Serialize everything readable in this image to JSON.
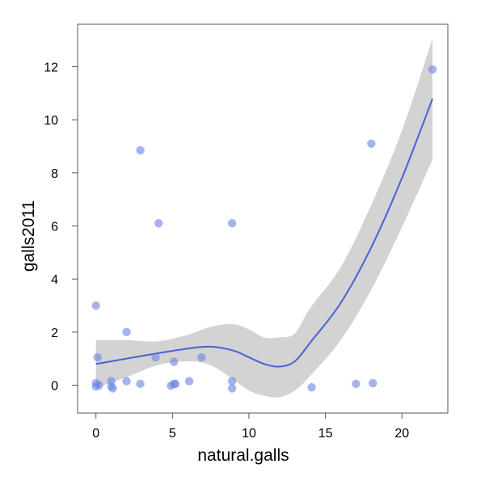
{
  "chart_data": {
    "type": "scatter",
    "title": "",
    "xlabel": "natural.galls",
    "ylabel": "galls2011",
    "xlim": [
      -1.2,
      23.0
    ],
    "ylim": [
      -1.05,
      13.6
    ],
    "xticks": [
      0,
      5,
      10,
      15,
      20
    ],
    "yticks": [
      0,
      2,
      4,
      6,
      8,
      10,
      12
    ],
    "grid": false,
    "legend": "none",
    "colors": {
      "points": "#6f86e3",
      "line": "#4a60d6",
      "band": "#d3d3d3",
      "frame": "#555555"
    },
    "series": [
      {
        "points": [
          [
            0,
            3.0
          ],
          [
            0,
            0.08
          ],
          [
            0,
            -0.05
          ],
          [
            0.1,
            1.05
          ],
          [
            0.2,
            0.0
          ],
          [
            1,
            0.15
          ],
          [
            1,
            -0.05
          ],
          [
            1.1,
            -0.12
          ],
          [
            2,
            2.0
          ],
          [
            2,
            0.15
          ],
          [
            2.9,
            8.85
          ],
          [
            2.9,
            0.05
          ],
          [
            3.9,
            1.05
          ],
          [
            4.1,
            6.1
          ],
          [
            4.9,
            -0.02
          ],
          [
            5.1,
            0.88
          ],
          [
            5.1,
            0.05
          ],
          [
            5.2,
            0.05
          ],
          [
            6.1,
            0.15
          ],
          [
            6.9,
            1.05
          ],
          [
            8.9,
            6.1
          ],
          [
            8.9,
            0.15
          ],
          [
            8.9,
            -0.12
          ],
          [
            14.1,
            -0.08
          ],
          [
            17.0,
            0.05
          ],
          [
            18.0,
            9.1
          ],
          [
            18.1,
            0.08
          ],
          [
            22.0,
            11.9
          ]
        ]
      }
    ],
    "smooth": {
      "x": [
        0,
        2,
        4,
        6,
        7.5,
        9,
        10,
        11,
        12,
        13,
        14,
        16,
        18,
        20,
        22
      ],
      "y": [
        0.8,
        1.0,
        1.2,
        1.38,
        1.45,
        1.3,
        1.05,
        0.8,
        0.7,
        0.9,
        1.6,
        3.1,
        5.2,
        7.8,
        10.8
      ],
      "lower": [
        -0.1,
        0.3,
        0.75,
        0.9,
        0.75,
        0.2,
        -0.2,
        -0.4,
        -0.45,
        -0.2,
        0.35,
        1.7,
        3.6,
        5.95,
        8.5
      ],
      "upper": [
        1.7,
        1.7,
        1.65,
        1.9,
        2.2,
        2.3,
        2.1,
        1.8,
        1.8,
        1.95,
        2.9,
        4.45,
        6.8,
        9.6,
        13.05
      ]
    }
  }
}
